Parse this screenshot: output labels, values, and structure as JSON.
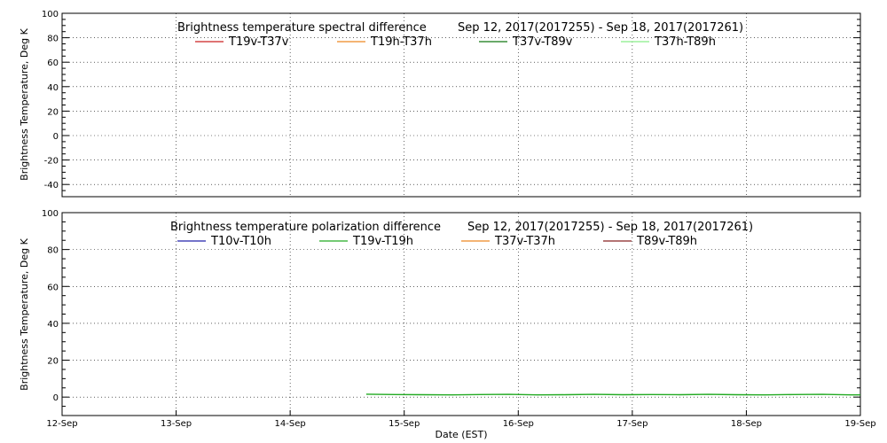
{
  "chart_data": [
    {
      "type": "line",
      "title": "Brightness temperature spectral difference",
      "date_range": "Sep 12, 2017(2017255) - Sep 18, 2017(2017261)",
      "ylabel": "Brightness Temperature, Deg K",
      "xlim": [
        "2017-09-12",
        "2017-09-19"
      ],
      "ylim": [
        -50,
        100
      ],
      "yticks": [
        -40,
        -20,
        0,
        20,
        40,
        60,
        80,
        100
      ],
      "grid": true,
      "legend_placement": "top",
      "series": [
        {
          "name": "T19v-T37v",
          "color": "#cc2222",
          "points": []
        },
        {
          "name": "T19h-T37h",
          "color": "#ee8822",
          "points": []
        },
        {
          "name": "T37v-T89v",
          "color": "#117711",
          "points": []
        },
        {
          "name": "T37h-T89h",
          "color": "#88ee88",
          "points": []
        }
      ]
    },
    {
      "type": "line",
      "title": "Brightness temperature polarization difference",
      "date_range": "Sep 12, 2017(2017255) - Sep 18, 2017(2017261)",
      "ylabel": "Brightness Temperature, Deg K",
      "xlabel": "Date (EST)",
      "xlim": [
        "2017-09-12",
        "2017-09-19"
      ],
      "xticks": [
        "12-Sep",
        "13-Sep",
        "14-Sep",
        "15-Sep",
        "16-Sep",
        "17-Sep",
        "18-Sep",
        "19-Sep"
      ],
      "ylim": [
        -10,
        100
      ],
      "yticks": [
        0,
        20,
        40,
        60,
        80,
        100
      ],
      "grid": true,
      "legend_placement": "top",
      "series": [
        {
          "name": "T10v-T10h",
          "color": "#2222aa",
          "points": []
        },
        {
          "name": "T19v-T19h",
          "color": "#22aa22",
          "points": [
            [
              "2017-09-14T16:00",
              1.6
            ],
            [
              "2017-09-14T22:00",
              1.4
            ],
            [
              "2017-09-15T04:00",
              1.3
            ],
            [
              "2017-09-15T10:00",
              1.2
            ],
            [
              "2017-09-15T16:00",
              1.4
            ],
            [
              "2017-09-15T22:00",
              1.5
            ],
            [
              "2017-09-16T04:00",
              1.2
            ],
            [
              "2017-09-16T10:00",
              1.3
            ],
            [
              "2017-09-16T16:00",
              1.5
            ],
            [
              "2017-09-16T22:00",
              1.3
            ],
            [
              "2017-09-17T04:00",
              1.4
            ],
            [
              "2017-09-17T10:00",
              1.3
            ],
            [
              "2017-09-17T16:00",
              1.5
            ],
            [
              "2017-09-17T22:00",
              1.3
            ],
            [
              "2017-09-18T04:00",
              1.2
            ],
            [
              "2017-09-18T10:00",
              1.4
            ],
            [
              "2017-09-18T16:00",
              1.5
            ],
            [
              "2017-09-18T22:00",
              1.2
            ],
            [
              "2017-09-19T00:00",
              1.2
            ]
          ]
        },
        {
          "name": "T37v-T37h",
          "color": "#ee8822",
          "points": []
        },
        {
          "name": "T89v-T89h",
          "color": "#882222",
          "points": []
        }
      ]
    }
  ]
}
